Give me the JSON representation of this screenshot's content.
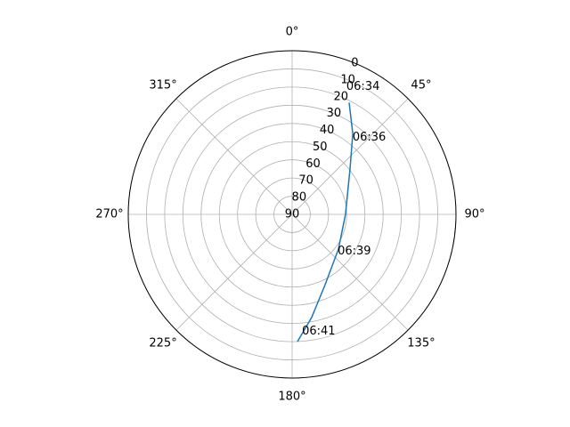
{
  "chart_data": {
    "type": "polar",
    "theta_zero": "north",
    "theta_direction": "clockwise",
    "rlim": [
      90,
      0
    ],
    "rticks": [
      0,
      10,
      20,
      30,
      40,
      50,
      60,
      70,
      80,
      90
    ],
    "rlabel_angle": 22.5,
    "thetaticks": [
      {
        "value": 0,
        "label": "0°"
      },
      {
        "value": 45,
        "label": "45°"
      },
      {
        "value": 90,
        "label": "90°"
      },
      {
        "value": 135,
        "label": "135°"
      },
      {
        "value": 180,
        "label": "180°"
      },
      {
        "value": 225,
        "label": "225°"
      },
      {
        "value": 270,
        "label": "270°"
      },
      {
        "value": 315,
        "label": "315°"
      }
    ],
    "grid": true,
    "color": "#1f77b4",
    "theta": [
      27,
      36.8,
      51.9,
      90,
      126.9,
      154.9,
      169.3,
      177.6
    ],
    "r": [
      21,
      34.4,
      49.6,
      60.7,
      58.2,
      47.3,
      32.3,
      20
    ],
    "annotations": [
      {
        "text": "06:34",
        "theta": 23.5,
        "r": 15.3
      },
      {
        "text": "06:36",
        "theta": 39.3,
        "r": 37.6
      },
      {
        "text": "06:39",
        "theta": 131.4,
        "r": 56.7
      },
      {
        "text": "06:41",
        "theta": 175.3,
        "r": 23.8
      }
    ]
  }
}
